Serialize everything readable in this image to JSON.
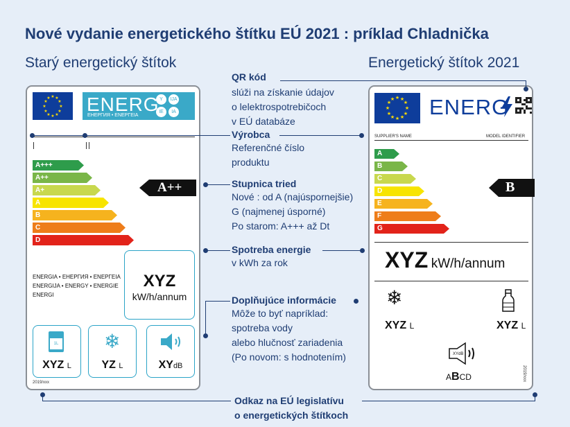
{
  "title": "Nové vydanie energetického štítku EÚ 2021 : príklad Chladnička",
  "old_label": {
    "heading": "Starý energetický štítok",
    "energ_word": "ENERG",
    "energ_sub": "ЕНЕРГИЯ • ΕΝΕΡΓΕΙΑ",
    "lang_badges": [
      "Y",
      "IJA",
      "IE",
      "IA"
    ],
    "scale": [
      {
        "class": "A+++",
        "color": "#2e9c4b"
      },
      {
        "class": "A++",
        "color": "#7ab648"
      },
      {
        "class": "A+",
        "color": "#c8d84e"
      },
      {
        "class": "A",
        "color": "#f7e400"
      },
      {
        "class": "B",
        "color": "#f6b31e"
      },
      {
        "class": "C",
        "color": "#ee7d1a"
      },
      {
        "class": "D",
        "color": "#e2231a"
      }
    ],
    "rating": "A++",
    "energy_text": "ENERGIA • ЕНЕРГИЯ • ΕΝΕΡΓΕΙΑ\nENERGIJA • ENERGY • ENERGIE\nENERGI",
    "consumption_value": "XYZ",
    "consumption_unit": "kW/h/annum",
    "icons": [
      {
        "icon": "milk-carton-icon",
        "value": "XYZ",
        "unit": "L",
        "carton_text": "1L"
      },
      {
        "icon": "snowflake-icon",
        "value": "YZ",
        "unit": "L"
      },
      {
        "icon": "speaker-icon",
        "value": "XY",
        "unit": "dB"
      }
    ],
    "regulation": "2019/xxx"
  },
  "new_label": {
    "heading": "Energetický štítok 2021",
    "energ_word": "ENERG",
    "supplier_name": "SUPPLIER'S NAME",
    "model_identifier": "MODEL IDENTIFIER",
    "scale": [
      {
        "class": "A",
        "color": "#2e9c4b"
      },
      {
        "class": "B",
        "color": "#7ab648"
      },
      {
        "class": "C",
        "color": "#c8d84e"
      },
      {
        "class": "D",
        "color": "#f7e400"
      },
      {
        "class": "E",
        "color": "#f6b31e"
      },
      {
        "class": "F",
        "color": "#ee7d1a"
      },
      {
        "class": "G",
        "color": "#e2231a"
      }
    ],
    "rating": "B",
    "consumption_value": "XYZ",
    "consumption_unit": "kW/h/annum",
    "freezer_value": "XYZ",
    "freezer_unit": "L",
    "fridge_value": "XYZ",
    "fridge_unit": "L",
    "noise_small": "XYdB",
    "noise_class_a": "A",
    "noise_class_b": "B",
    "noise_class_cd": "CD",
    "regulation": "2019/xxx"
  },
  "callouts": {
    "qr": {
      "heading": "QR kód",
      "lines": [
        "slúži na získanie údajov",
        "o lelektrospotrebičoch",
        "v EÚ databáze"
      ]
    },
    "supplier": {
      "heading": "Výrobca",
      "lines": [
        "Referenčné číslo",
        "produktu"
      ]
    },
    "scale": {
      "heading": "Stupnica tried",
      "lines": [
        "Nové : od A (najúspornejšie)",
        "G (najmenej úsporné)",
        "Po starom: A+++ až Dt"
      ]
    },
    "energy": {
      "heading": "Spotreba energie",
      "lines": [
        "v kWh za rok"
      ]
    },
    "additional": {
      "heading": "Doplňujúce informácie",
      "lines": [
        "Môže to byť napríklad:",
        "spotreba vody",
        "alebo hlučnosť zariadenia",
        "(Po novom: s hodnotením)"
      ]
    },
    "legislation": {
      "heading_1": "Odkaz na EÚ legislatívu",
      "heading_2": "o energetických štítkoch"
    }
  },
  "colors": {
    "brand_blue": "#1f3d73",
    "eu_blue": "#0e3d9b",
    "teal": "#3aa9c8",
    "background": "#e6eef8"
  }
}
